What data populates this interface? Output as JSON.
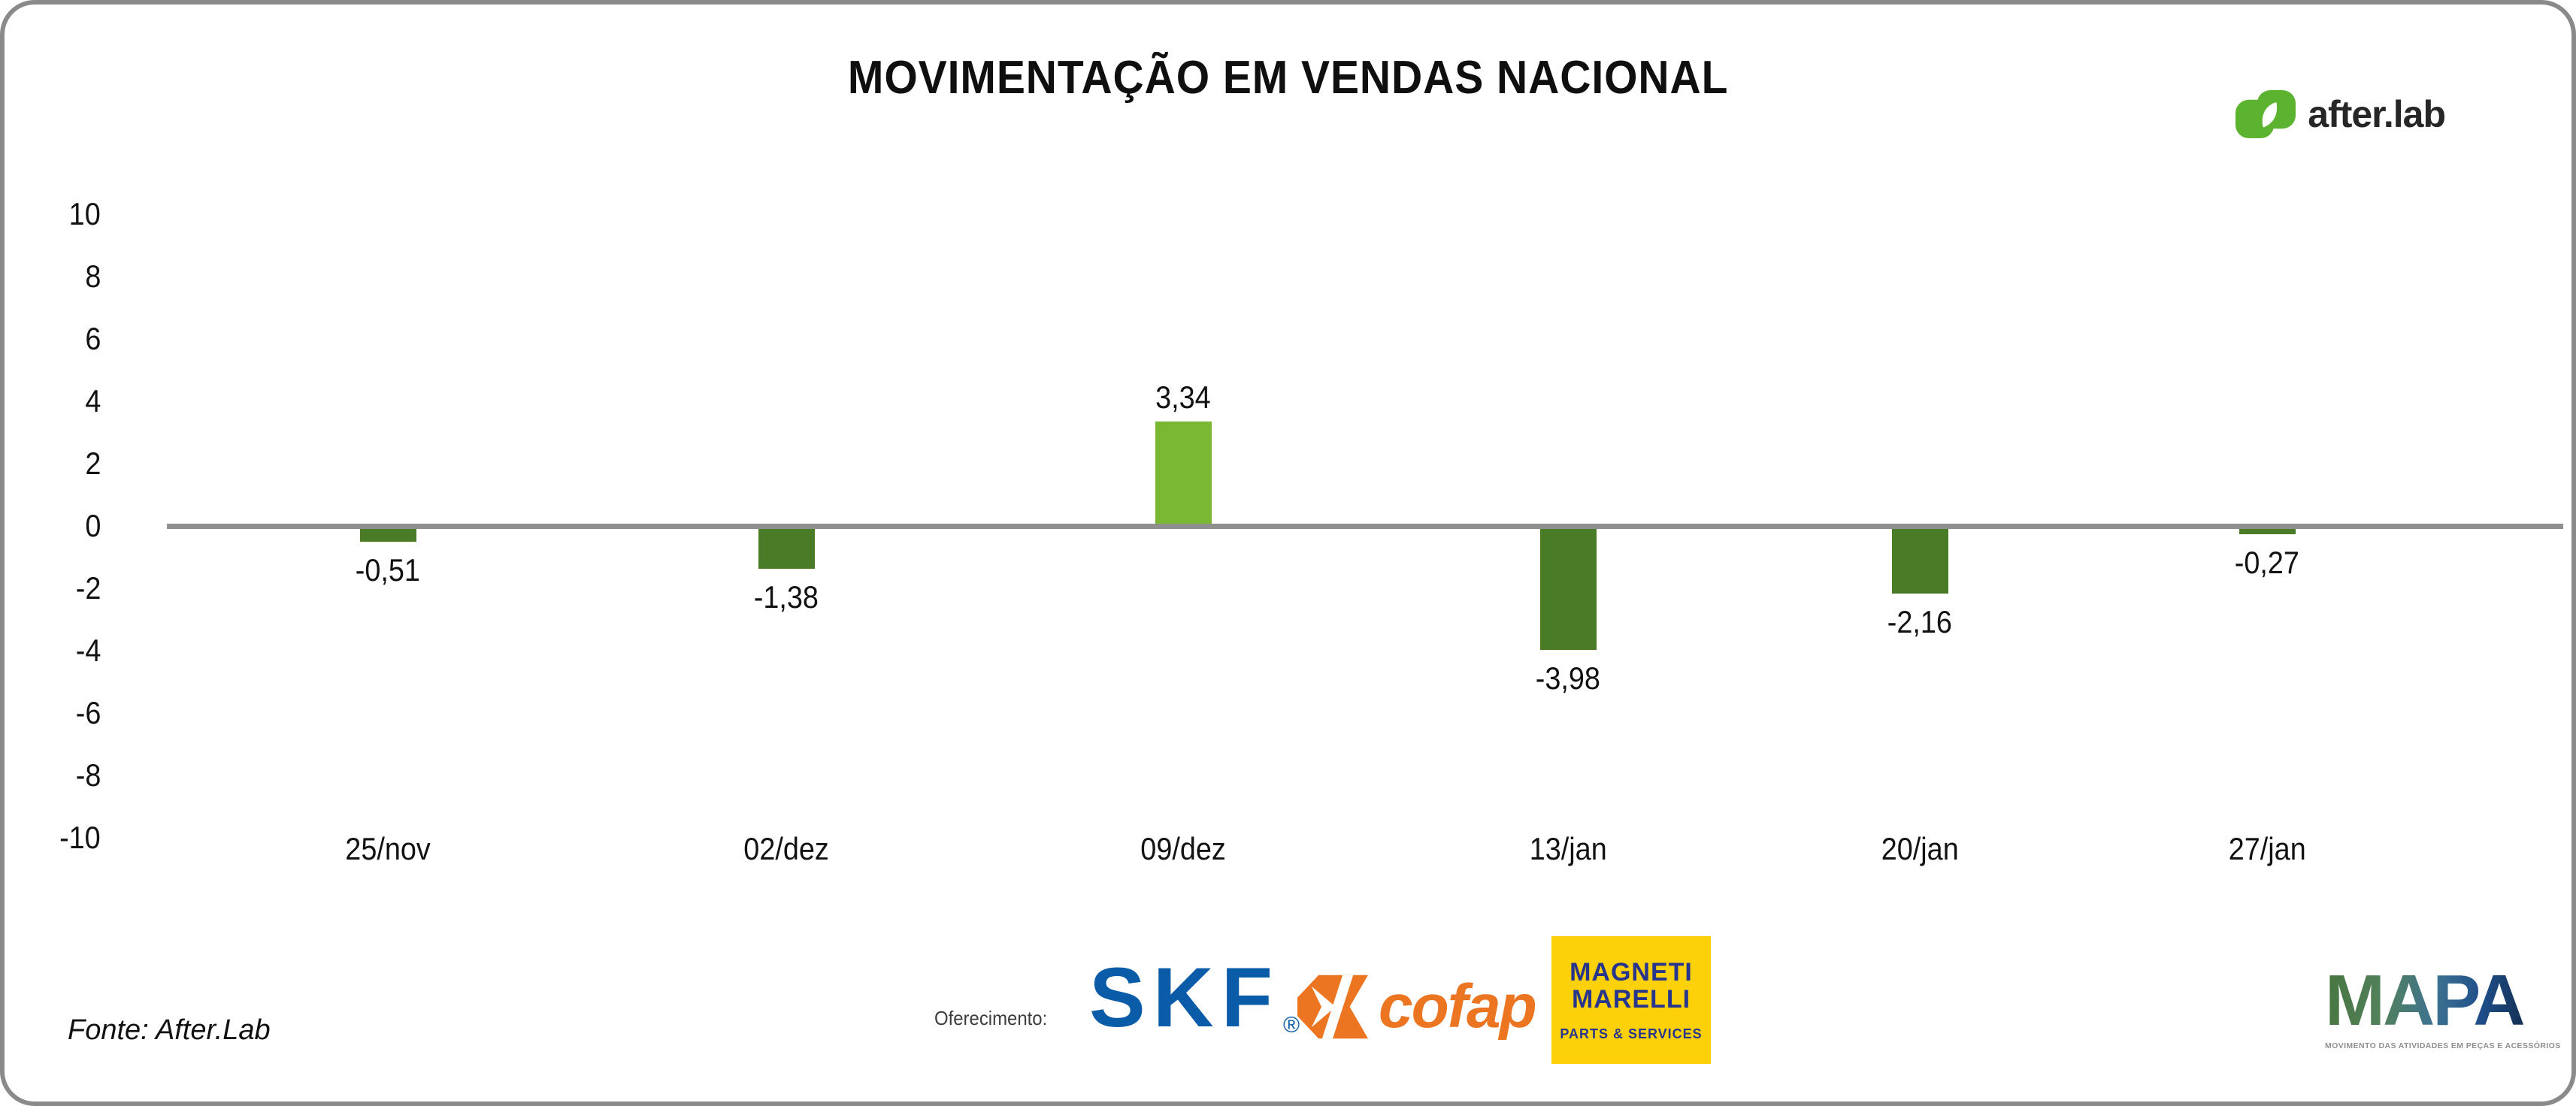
{
  "title": "MOVIMENTAÇÃO EM VENDAS NACIONAL",
  "brand": {
    "name": "after.lab",
    "icon": "afterlab-leaf-icon",
    "green": "#5cb32f",
    "text_color": "#262626"
  },
  "chart_data": {
    "type": "bar",
    "title": "MOVIMENTAÇÃO EM VENDAS NACIONAL",
    "categories": [
      "25/nov",
      "02/dez",
      "09/dez",
      "13/jan",
      "20/jan",
      "27/jan"
    ],
    "values": [
      -0.51,
      -1.38,
      3.34,
      -3.98,
      -2.16,
      -0.27
    ],
    "value_labels": [
      "-0,51",
      "-1,38",
      "3,34",
      "-3,98",
      "-2,16",
      "-0,27"
    ],
    "ylim": [
      -10,
      10
    ],
    "yticks": [
      10,
      8,
      6,
      4,
      2,
      0,
      -2,
      -4,
      -6,
      -8,
      -10
    ],
    "grid": false,
    "legend": false,
    "colors": {
      "bar_positive": "#7ab733",
      "bar_negative": "#4a7c28",
      "axis_line": "#8f8f8f",
      "label_text": "#121212"
    }
  },
  "footer": {
    "source": "Fonte: After.Lab",
    "sponsorship_label": "Oferecimento:",
    "sponsors": {
      "skf": {
        "label": "SKF",
        "registered_mark": "®",
        "color": "#0a5ca8"
      },
      "cofap": {
        "label": "cofap",
        "color": "#ec7522"
      },
      "magneti_marelli": {
        "line1": "MAGNETI",
        "line2": "MARELLI",
        "tagline": "PARTS & SERVICES",
        "bg": "#fdd109",
        "fg": "#27368c"
      }
    },
    "mapa": {
      "label": "MAPA",
      "subtitle": "MOVIMENTO DAS ATIVIDADES EM PEÇAS E ACESSÓRIOS"
    }
  }
}
